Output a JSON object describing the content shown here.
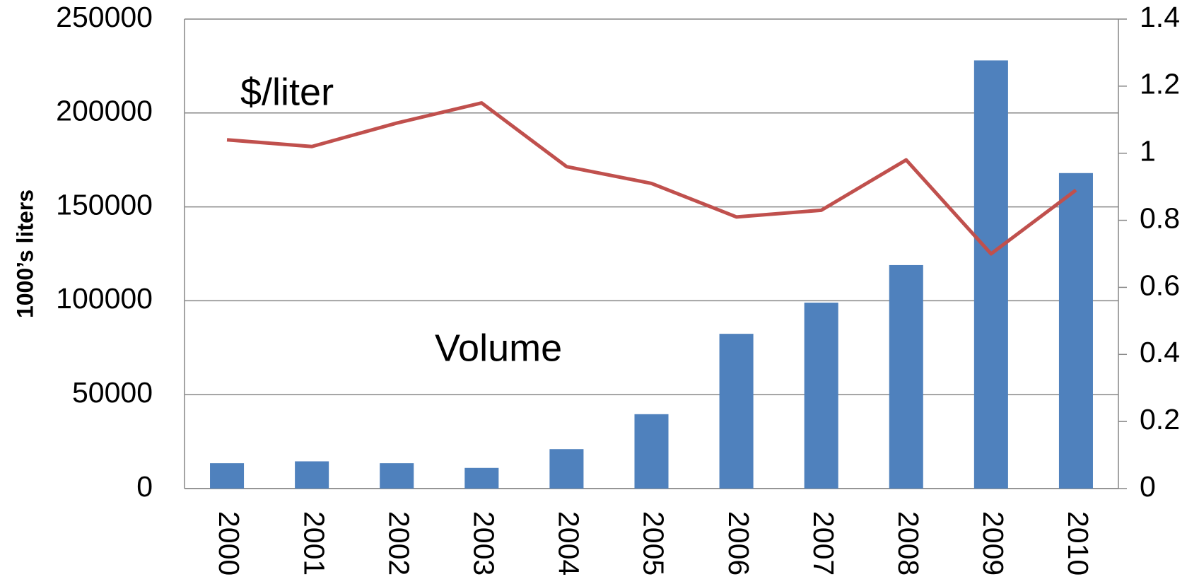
{
  "chart_data": {
    "type": "bar_line",
    "categories": [
      "2000",
      "2001",
      "2002",
      "2003",
      "2004",
      "2005",
      "2006",
      "2007",
      "2008",
      "2009",
      "2010"
    ],
    "series": [
      {
        "name": "Volume",
        "type": "bar",
        "color": "#4f81bd",
        "values": [
          13500,
          14500,
          13500,
          11000,
          21000,
          39600,
          82400,
          99000,
          119000,
          228000,
          168000
        ]
      },
      {
        "name": "$/liter",
        "type": "line",
        "axis": "y2",
        "color": "#c0504d",
        "values": [
          1.04,
          1.02,
          1.09,
          1.15,
          0.96,
          0.91,
          0.81,
          0.83,
          0.98,
          0.7,
          0.89
        ]
      }
    ],
    "ylabel": "1000’s liters",
    "ylim": [
      0,
      250000
    ],
    "yticks": [
      0,
      50000,
      100000,
      150000,
      200000,
      250000
    ],
    "y2lim": [
      0,
      1.4
    ],
    "y2ticks": [
      0,
      0.2,
      0.4,
      0.6,
      0.8,
      1,
      1.2,
      1.4
    ],
    "grid": true
  }
}
